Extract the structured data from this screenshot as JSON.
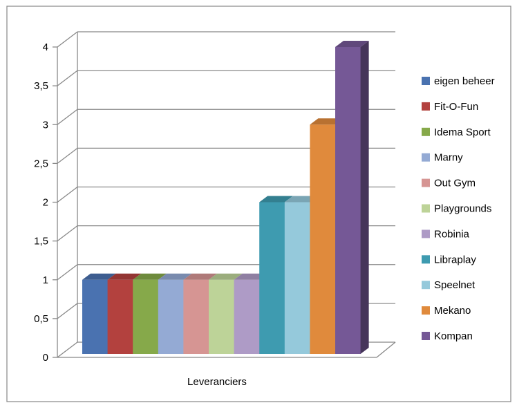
{
  "chart_data": {
    "type": "bar",
    "style": "3d-clustered-column",
    "xlabel": "Leveranciers",
    "ylabel": "",
    "title": "",
    "ylim": [
      0,
      4
    ],
    "ytick_labels": [
      "0",
      "0,5",
      "1",
      "1,5",
      "2",
      "2,5",
      "3",
      "3,5",
      "4"
    ],
    "grid": true,
    "legend_position": "right",
    "series": [
      {
        "name": "eigen beheer",
        "value": 1,
        "color": "#4A72B0"
      },
      {
        "name": "Fit-O-Fun",
        "value": 1,
        "color": "#B3413E"
      },
      {
        "name": "Idema Sport",
        "value": 1,
        "color": "#86A94A"
      },
      {
        "name": "Marny",
        "value": 1,
        "color": "#94AAD4"
      },
      {
        "name": "Out Gym",
        "value": 1,
        "color": "#D69593"
      },
      {
        "name": "Playgrounds",
        "value": 1,
        "color": "#BDD398"
      },
      {
        "name": "Robinia",
        "value": 1,
        "color": "#AE9BC6"
      },
      {
        "name": "Libraplay",
        "value": 2,
        "color": "#3E9BB0"
      },
      {
        "name": "Speelnet",
        "value": 2,
        "color": "#95C9DB"
      },
      {
        "name": "Mekano",
        "value": 3,
        "color": "#E08A3C"
      },
      {
        "name": "Kompan",
        "value": 4,
        "color": "#755896"
      }
    ]
  }
}
